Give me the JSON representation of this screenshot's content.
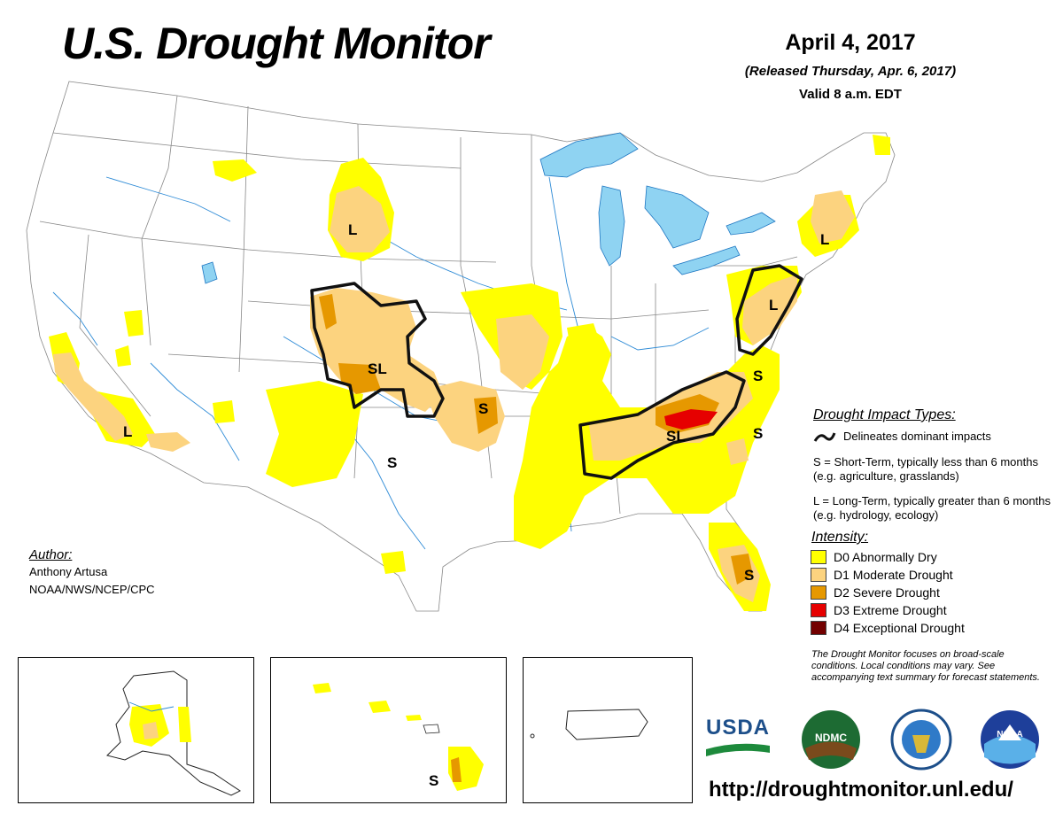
{
  "title": "U.S. Drought Monitor",
  "date": "April 4, 2017",
  "released": "(Released Thursday, Apr. 6, 2017)",
  "valid": "Valid 8 a.m. EDT",
  "impact_types": {
    "title": "Drought Impact Types:",
    "delineates": "Delineates dominant impacts",
    "short_term": "S = Short-Term, typically less than 6 months (e.g. agriculture, grasslands)",
    "long_term": "L = Long-Term, typically greater than 6 months (e.g. hydrology, ecology)"
  },
  "intensity": {
    "title": "Intensity:",
    "levels": [
      {
        "label": "D0 Abnormally Dry",
        "color": "#ffff00"
      },
      {
        "label": "D1 Moderate Drought",
        "color": "#fcd37f"
      },
      {
        "label": "D2 Severe Drought",
        "color": "#e69800"
      },
      {
        "label": "D3 Extreme Drought",
        "color": "#e60000"
      },
      {
        "label": "D4 Exceptional Drought",
        "color": "#730000"
      }
    ]
  },
  "author": {
    "title": "Author:",
    "name": "Anthony Artusa",
    "org": "NOAA/NWS/NCEP/CPC"
  },
  "disclaimer": "The Drought Monitor focuses on broad-scale conditions. Local conditions may vary. See accompanying text summary for forecast statements.",
  "url": "http://droughtmonitor.unl.edu/",
  "map_labels": {
    "s": "S",
    "l": "L",
    "sl": "SL"
  },
  "logos": {
    "usda": "USDA",
    "ndmc": "NDMC",
    "noaa": "NOAA"
  },
  "colors": {
    "water": "#8fd3f2",
    "rivers": "#2e8bd6",
    "boundaries": "#888888",
    "impact_line": "#111111"
  }
}
